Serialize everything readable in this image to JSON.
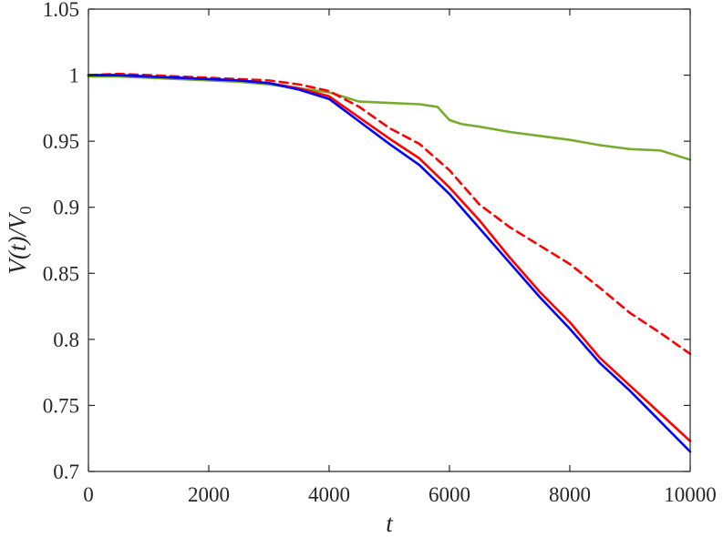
{
  "chart_data": {
    "type": "line",
    "title": "",
    "xlabel": "t",
    "ylabel_parts": [
      "V(",
      "t",
      ")/V",
      "0"
    ],
    "xlim": [
      0,
      10000
    ],
    "ylim": [
      0.7,
      1.05
    ],
    "grid": false,
    "legend": "none",
    "xticks": [
      0,
      2000,
      4000,
      6000,
      8000,
      10000
    ],
    "xtick_labels": [
      "0",
      "2000",
      "4000",
      "6000",
      "8000",
      "10000"
    ],
    "yticks": [
      0.7,
      0.75,
      0.8,
      0.85,
      0.9,
      0.95,
      1.0,
      1.05
    ],
    "ytick_labels": [
      "0.7",
      "0.75",
      "0.8",
      "0.85",
      "0.9",
      "0.95",
      "1",
      "1.05"
    ],
    "series": [
      {
        "color": "#77ac30",
        "dash": "solid",
        "x": [
          0,
          500,
          1000,
          1500,
          2000,
          2500,
          3000,
          3500,
          4000,
          4500,
          5000,
          5500,
          5800,
          6000,
          6200,
          6500,
          7000,
          7500,
          8000,
          8500,
          9000,
          9500,
          10000
        ],
        "y": [
          0.999,
          0.999,
          0.998,
          0.997,
          0.996,
          0.995,
          0.993,
          0.99,
          0.987,
          0.98,
          0.979,
          0.978,
          0.976,
          0.966,
          0.963,
          0.961,
          0.957,
          0.954,
          0.951,
          0.947,
          0.944,
          0.943,
          0.936
        ]
      },
      {
        "color": "#ff0000",
        "dash": "dashed",
        "x": [
          0,
          500,
          1000,
          1500,
          2000,
          2500,
          3000,
          3500,
          4000,
          4500,
          5000,
          5500,
          6000,
          6500,
          7000,
          7500,
          8000,
          8500,
          9000,
          9500,
          10000
        ],
        "y": [
          1.0,
          1.001,
          1.0,
          0.999,
          0.998,
          0.997,
          0.996,
          0.993,
          0.988,
          0.976,
          0.96,
          0.948,
          0.928,
          0.902,
          0.885,
          0.871,
          0.857,
          0.839,
          0.82,
          0.805,
          0.789
        ]
      },
      {
        "color": "#ff0000",
        "dash": "solid",
        "x": [
          0,
          500,
          1000,
          1500,
          2000,
          2500,
          3000,
          3500,
          4000,
          4500,
          5000,
          5500,
          6000,
          6500,
          7000,
          7500,
          8000,
          8500,
          9000,
          9500,
          10000
        ],
        "y": [
          1.0,
          1.0,
          0.999,
          0.998,
          0.997,
          0.996,
          0.994,
          0.99,
          0.984,
          0.968,
          0.952,
          0.937,
          0.915,
          0.89,
          0.862,
          0.836,
          0.813,
          0.786,
          0.765,
          0.744,
          0.723
        ]
      },
      {
        "color": "#0000ff",
        "dash": "solid",
        "x": [
          0,
          500,
          1000,
          1500,
          2000,
          2500,
          3000,
          3500,
          4000,
          4500,
          5000,
          5500,
          6000,
          6500,
          7000,
          7500,
          8000,
          8500,
          9000,
          9500,
          10000
        ],
        "y": [
          1.0,
          1.0,
          0.999,
          0.998,
          0.997,
          0.996,
          0.994,
          0.989,
          0.982,
          0.965,
          0.948,
          0.932,
          0.91,
          0.884,
          0.858,
          0.832,
          0.808,
          0.782,
          0.761,
          0.738,
          0.715
        ]
      }
    ]
  }
}
